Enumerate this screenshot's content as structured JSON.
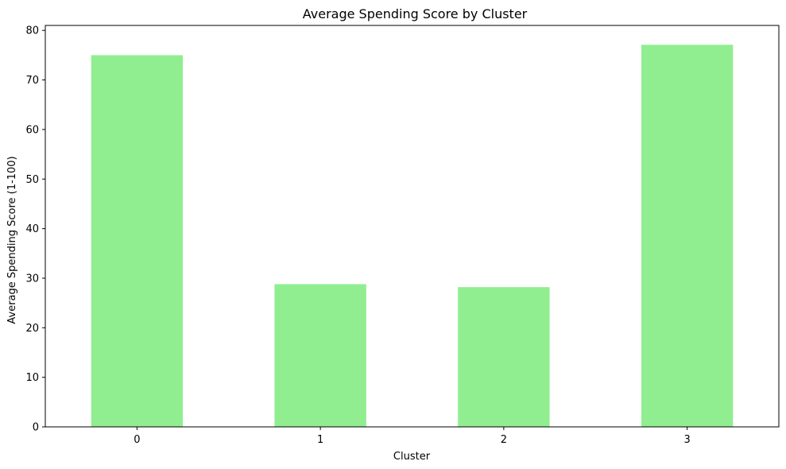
{
  "chart_data": {
    "type": "bar",
    "title": "Average Spending Score by Cluster",
    "xlabel": "Cluster",
    "ylabel": "Average Spending Score (1-100)",
    "categories": [
      "0",
      "1",
      "2",
      "3"
    ],
    "values": [
      75.0,
      28.8,
      28.2,
      77.1
    ],
    "ylim": [
      0,
      81
    ],
    "yticks": [
      0,
      10,
      20,
      30,
      40,
      50,
      60,
      70,
      80
    ],
    "bar_color": "#90ee90",
    "grid": false,
    "legend": "none"
  }
}
